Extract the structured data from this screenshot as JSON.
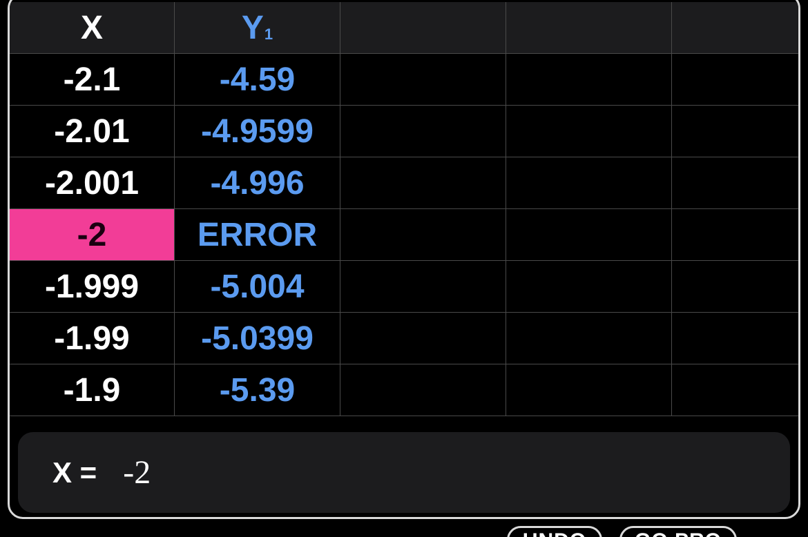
{
  "table": {
    "headers": {
      "x": "X",
      "y1_letter": "Y",
      "y1_sub": "1"
    },
    "rows": [
      {
        "x": "-2.1",
        "y1": "-4.59"
      },
      {
        "x": "-2.01",
        "y1": "-4.9599"
      },
      {
        "x": "-2.001",
        "y1": "-4.996"
      },
      {
        "x": "-2",
        "y1": "ERROR"
      },
      {
        "x": "-1.999",
        "y1": "-5.004"
      },
      {
        "x": "-1.99",
        "y1": "-5.0399"
      },
      {
        "x": "-1.9",
        "y1": "-5.39"
      }
    ],
    "selected_row": 3
  },
  "entry": {
    "label": "X =",
    "value": "-2"
  },
  "bottom_buttons": {
    "undo_label": "UNDO",
    "gopro_label": "GO PRO"
  },
  "colors": {
    "background": "#000000",
    "header_bg": "#1c1c1e",
    "y_series": "#5b9bf0",
    "selection": "#f23d97",
    "border": "#d9d9d9"
  }
}
